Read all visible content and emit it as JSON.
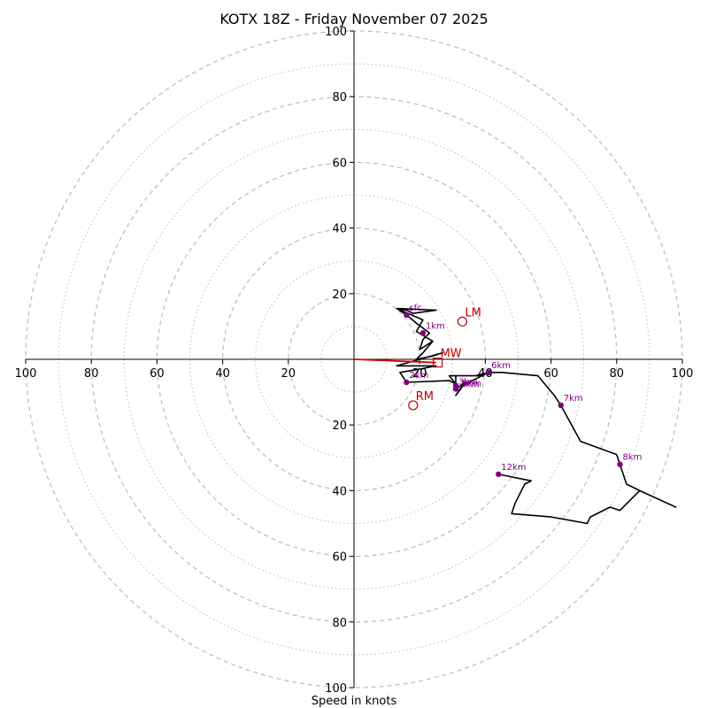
{
  "chart_data": {
    "type": "hodograph",
    "title": "KOTX 18Z - Friday November 07 2025",
    "xlabel": "Speed in knots",
    "range": [
      -100,
      100
    ],
    "ring_labels": [
      "100",
      "80",
      "60",
      "40",
      "20"
    ],
    "inner_labels": [
      "20",
      "40"
    ],
    "colors": {
      "hodograph": "#000000",
      "storm_vector": "#e00000",
      "markers": "#800080",
      "motion": "#c00000",
      "rings": "#bbbbbb"
    },
    "hodograph": [
      [
        24,
        5.5
      ],
      [
        19,
        8.5
      ],
      [
        21,
        12
      ],
      [
        13,
        15.5
      ],
      [
        16,
        15
      ],
      [
        18,
        14
      ],
      [
        25,
        15
      ],
      [
        13,
        15.5
      ],
      [
        16,
        13.5
      ],
      [
        19,
        11
      ],
      [
        23,
        8
      ],
      [
        21,
        6
      ],
      [
        20,
        3
      ],
      [
        24,
        5.5
      ],
      [
        21,
        2
      ],
      [
        19,
        0
      ],
      [
        24,
        1
      ],
      [
        27,
        2
      ],
      [
        13,
        -2
      ],
      [
        25,
        -2
      ],
      [
        20,
        -3
      ],
      [
        14,
        -4
      ],
      [
        16,
        -7
      ],
      [
        29,
        -6.5
      ],
      [
        31,
        -7.5
      ],
      [
        29,
        -5
      ],
      [
        39,
        -5
      ],
      [
        41,
        -4
      ],
      [
        33,
        -8
      ],
      [
        31,
        -11
      ],
      [
        34,
        -7
      ],
      [
        31,
        -9
      ],
      [
        31,
        -5
      ],
      [
        37,
        -5
      ],
      [
        41,
        -4
      ],
      [
        45,
        -4
      ],
      [
        56,
        -5
      ],
      [
        61,
        -11
      ],
      [
        63,
        -14
      ],
      [
        69,
        -25
      ],
      [
        80,
        -29
      ],
      [
        81,
        -32
      ],
      [
        83,
        -38
      ],
      [
        87,
        -40
      ],
      [
        98,
        -45
      ],
      [
        87,
        -40
      ],
      [
        81,
        -46
      ],
      [
        78,
        -45
      ],
      [
        72,
        -48
      ],
      [
        71,
        -50
      ],
      [
        60,
        -48
      ],
      [
        48,
        -47
      ],
      [
        49,
        -44
      ],
      [
        52,
        -38
      ],
      [
        54,
        -37
      ],
      [
        44,
        -35
      ]
    ],
    "height_markers": [
      {
        "label": "1km",
        "u": 21,
        "v": 8
      },
      {
        "label": "6km",
        "u": 41,
        "v": -4
      },
      {
        "label": "7km",
        "u": 63,
        "v": -14
      },
      {
        "label": "8km",
        "u": 81,
        "v": -32
      },
      {
        "label": "12km",
        "u": 44,
        "v": -35
      },
      {
        "label": "2km",
        "u": 16,
        "v": -7
      },
      {
        "label": "3km",
        "u": 31,
        "v": -9
      },
      {
        "label": "4km",
        "u": 31,
        "v": -9
      },
      {
        "label": "5km",
        "u": 31,
        "v": -8
      },
      {
        "label": "sfc",
        "u": 16,
        "v": 13.5
      }
    ],
    "storm_vector": {
      "from": [
        0,
        0
      ],
      "to": [
        25,
        -1
      ]
    },
    "storm_motion": [
      {
        "label": "LM",
        "u": 33,
        "v": 11.5,
        "shape": "circle"
      },
      {
        "label": "RM",
        "u": 18,
        "v": -14,
        "shape": "circle"
      },
      {
        "label": "MW",
        "u": 25.5,
        "v": -1,
        "shape": "square"
      }
    ]
  }
}
